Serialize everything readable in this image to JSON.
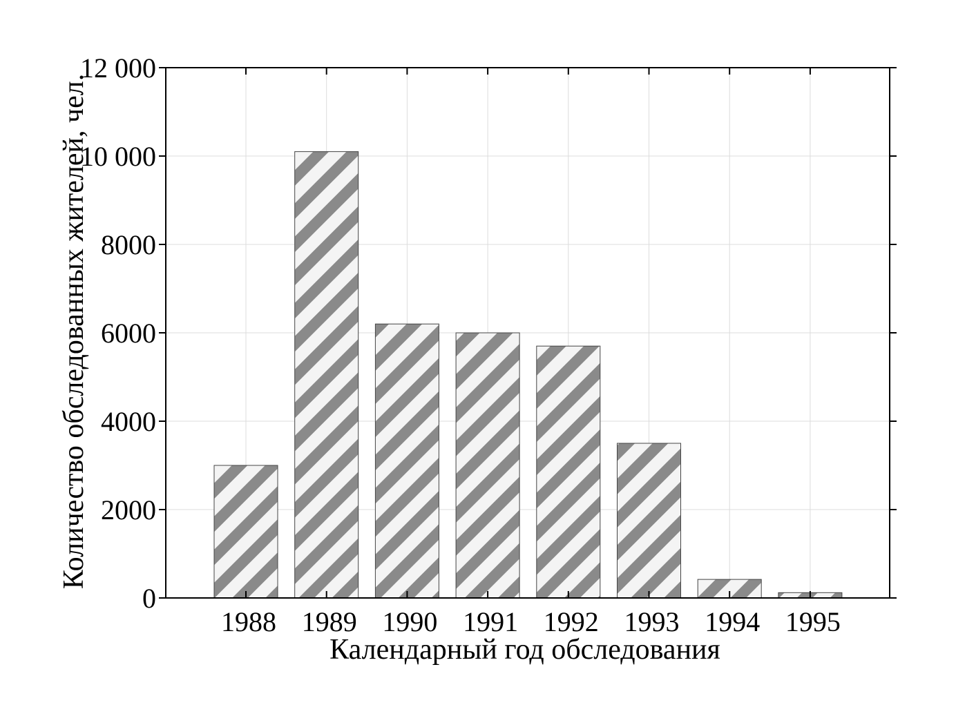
{
  "chart_data": {
    "type": "bar",
    "title": "",
    "xlabel": "Календарный год обследования",
    "ylabel": "Количество обследованных жителей, чел.",
    "categories": [
      "1988",
      "1989",
      "1990",
      "1991",
      "1992",
      "1993",
      "1994",
      "1995"
    ],
    "values": [
      3000,
      10100,
      6200,
      6000,
      5700,
      3500,
      420,
      120
    ],
    "ylim": [
      0,
      12000
    ],
    "yticks": [
      0,
      2000,
      4000,
      6000,
      8000,
      10000,
      12000
    ],
    "ytick_labels": [
      "0",
      "2000",
      "4000",
      "6000",
      "8000",
      "10 000",
      "12 000"
    ],
    "grid": true,
    "legend": "none",
    "colors": {
      "bar_stripe_dark": "#8a8a8a",
      "bar_stripe_light": "#f4f4f4",
      "bar_outline": "#444444",
      "grid": "#dcdcdc",
      "axis": "#000000"
    }
  }
}
